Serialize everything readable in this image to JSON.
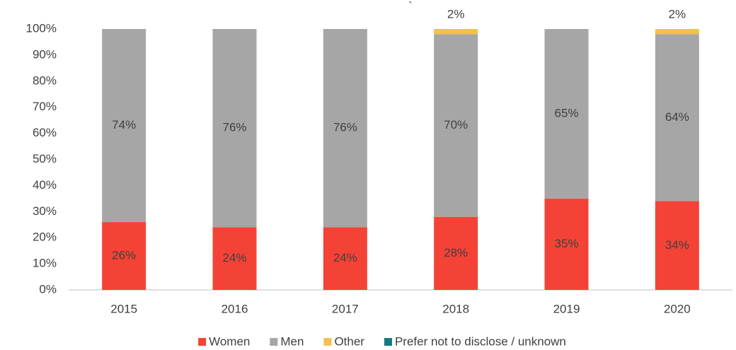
{
  "chart_data": {
    "type": "stacked_bar",
    "annotation": "`",
    "categories": [
      "2015",
      "2016",
      "2017",
      "2018",
      "2019",
      "2020"
    ],
    "series": [
      {
        "name": "Women",
        "color": "#f44336",
        "values": [
          26,
          24,
          24,
          28,
          35,
          34
        ],
        "value_labels": [
          "26%",
          "24%",
          "24%",
          "28%",
          "35%",
          "34%"
        ]
      },
      {
        "name": "Men",
        "color": "#a6a6a6",
        "values": [
          74,
          76,
          76,
          70,
          65,
          64
        ],
        "value_labels": [
          "74%",
          "76%",
          "76%",
          "70%",
          "65%",
          "64%"
        ]
      },
      {
        "name": "Other",
        "color": "#f2c14e",
        "values": [
          0,
          0,
          0,
          2,
          0,
          2
        ],
        "value_labels": [
          null,
          null,
          null,
          "2%",
          null,
          "2%"
        ]
      },
      {
        "name": "Prefer not to disclose / unknown",
        "color": "#137b80",
        "values": [
          0,
          0,
          0,
          0,
          0,
          0
        ]
      }
    ],
    "ylim": [
      0,
      100
    ],
    "yticks": [
      {
        "value": 0,
        "label": "0%"
      },
      {
        "value": 10,
        "label": "10%"
      },
      {
        "value": 20,
        "label": "20%"
      },
      {
        "value": 30,
        "label": "30%"
      },
      {
        "value": 40,
        "label": "40%"
      },
      {
        "value": 50,
        "label": "50%"
      },
      {
        "value": 60,
        "label": "60%"
      },
      {
        "value": 70,
        "label": "70%"
      },
      {
        "value": 80,
        "label": "80%"
      },
      {
        "value": 90,
        "label": "90%"
      },
      {
        "value": 100,
        "label": "100%"
      }
    ],
    "grid": false,
    "legend": "bottom"
  }
}
